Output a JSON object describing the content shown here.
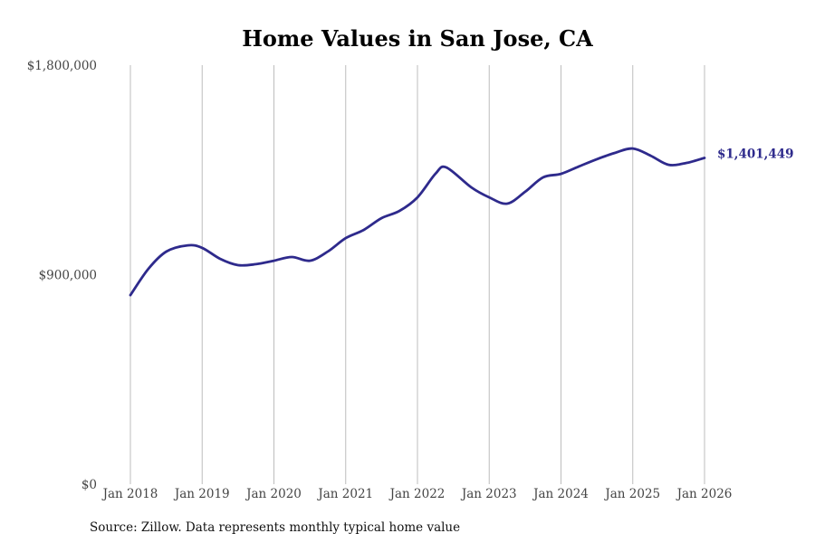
{
  "chart_data": {
    "type": "line",
    "title": "Home Values in San Jose, CA",
    "xlabel": "",
    "ylabel": "",
    "ylim": [
      0,
      1800000
    ],
    "xlim": [
      "2018-01",
      "2026-01"
    ],
    "grid": "vertical",
    "y_ticks": [
      {
        "value": 0,
        "label": "$0"
      },
      {
        "value": 900000,
        "label": "$900,000"
      },
      {
        "value": 1800000,
        "label": "$1,800,000"
      }
    ],
    "x_ticks": [
      {
        "year": 2018,
        "label": "Jan 2018"
      },
      {
        "year": 2019,
        "label": "Jan 2019"
      },
      {
        "year": 2020,
        "label": "Jan 2020"
      },
      {
        "year": 2021,
        "label": "Jan 2021"
      },
      {
        "year": 2022,
        "label": "Jan 2022"
      },
      {
        "year": 2023,
        "label": "Jan 2023"
      },
      {
        "year": 2024,
        "label": "Jan 2024"
      },
      {
        "year": 2025,
        "label": "Jan 2025"
      },
      {
        "year": 2026,
        "label": "Jan 2026"
      }
    ],
    "series": [
      {
        "name": "Typical home value",
        "color": "#2e2a8c",
        "points": [
          {
            "t": 2018.0,
            "v": 812000
          },
          {
            "t": 2018.25,
            "v": 925000
          },
          {
            "t": 2018.5,
            "v": 999000
          },
          {
            "t": 2018.8,
            "v": 1026000
          },
          {
            "t": 2019.0,
            "v": 1015000
          },
          {
            "t": 2019.25,
            "v": 968000
          },
          {
            "t": 2019.5,
            "v": 941000
          },
          {
            "t": 2019.75,
            "v": 945000
          },
          {
            "t": 2020.0,
            "v": 960000
          },
          {
            "t": 2020.25,
            "v": 976000
          },
          {
            "t": 2020.5,
            "v": 960000
          },
          {
            "t": 2020.75,
            "v": 999000
          },
          {
            "t": 2021.0,
            "v": 1057000
          },
          {
            "t": 2021.25,
            "v": 1092000
          },
          {
            "t": 2021.5,
            "v": 1143000
          },
          {
            "t": 2021.75,
            "v": 1174000
          },
          {
            "t": 2022.0,
            "v": 1232000
          },
          {
            "t": 2022.25,
            "v": 1333000
          },
          {
            "t": 2022.4,
            "v": 1361000
          },
          {
            "t": 2022.75,
            "v": 1275000
          },
          {
            "t": 2023.0,
            "v": 1232000
          },
          {
            "t": 2023.25,
            "v": 1205000
          },
          {
            "t": 2023.5,
            "v": 1256000
          },
          {
            "t": 2023.75,
            "v": 1318000
          },
          {
            "t": 2024.0,
            "v": 1333000
          },
          {
            "t": 2024.25,
            "v": 1365000
          },
          {
            "t": 2024.5,
            "v": 1396000
          },
          {
            "t": 2024.75,
            "v": 1423000
          },
          {
            "t": 2025.0,
            "v": 1442000
          },
          {
            "t": 2025.25,
            "v": 1411000
          },
          {
            "t": 2025.5,
            "v": 1372000
          },
          {
            "t": 2025.75,
            "v": 1380000
          },
          {
            "t": 2026.0,
            "v": 1401449
          }
        ]
      }
    ],
    "end_label": "$1,401,449",
    "source": "Source: Zillow. Data represents monthly typical home value"
  },
  "colors": {
    "line": "#2e2a8c",
    "grid": "#bdbdbd"
  }
}
